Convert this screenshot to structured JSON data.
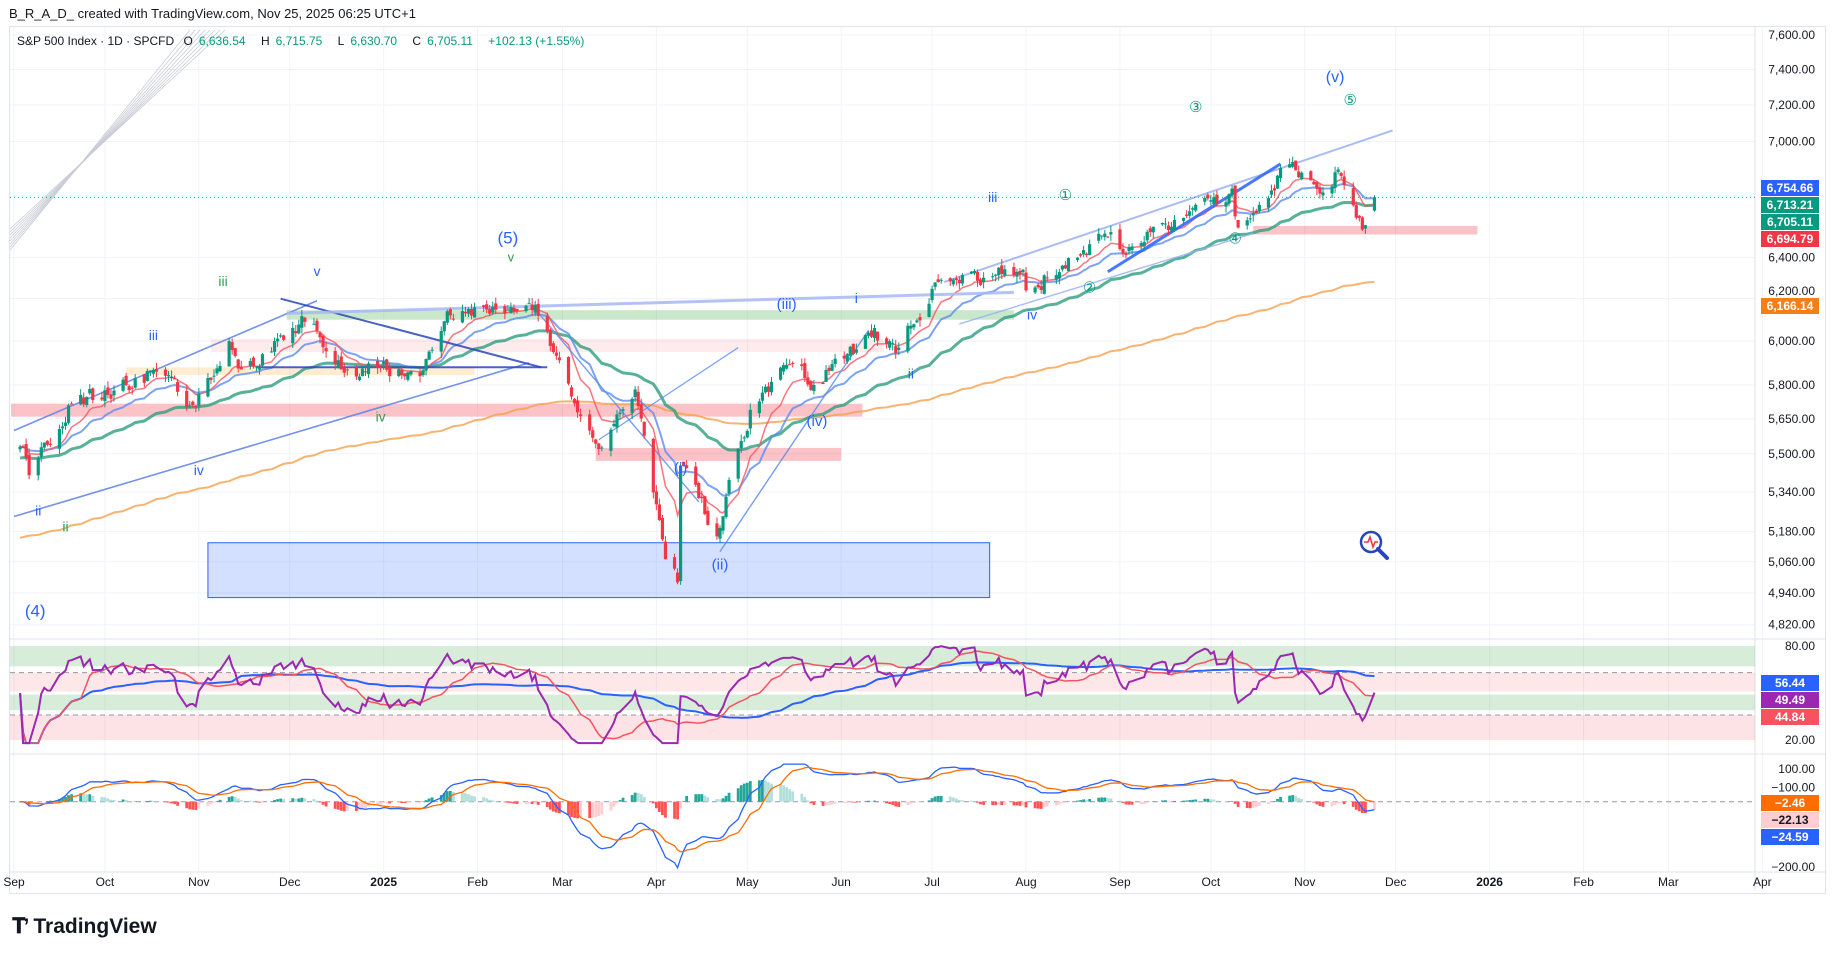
{
  "header": {
    "credit": "B_R_A_D_ created with TradingView.com, Nov 25, 2025 06:25 UTC+1"
  },
  "legend": {
    "symbol": "S&P 500 Index · 1D · SPCFD",
    "o_label": "O",
    "o": "6,636.54",
    "h_label": "H",
    "h": "6,715.75",
    "l_label": "L",
    "l": "6,630.70",
    "c_label": "C",
    "c": "6,705.11",
    "change": "+102.13 (+1.55%)"
  },
  "price_tags": [
    {
      "value": 6754.66,
      "text": "6,754.66",
      "color": "#2962ff"
    },
    {
      "value": 6713.21,
      "text": "6,713.21",
      "color": "#089981"
    },
    {
      "value": 6705.11,
      "text": "6,705.11",
      "color": "#089981"
    },
    {
      "value": 6694.79,
      "text": "6,694.79",
      "color": "#f23645"
    },
    {
      "value": 6166.14,
      "text": "6,166.14",
      "color": "#f57f17"
    }
  ],
  "rsi_tags": [
    {
      "value": 56.44,
      "text": "56.44",
      "color": "#2962ff"
    },
    {
      "value": 49.49,
      "text": "49.49",
      "color": "#9c27b0"
    },
    {
      "value": 44.84,
      "text": "44.84",
      "color": "#f7525f"
    }
  ],
  "macd_tags": [
    {
      "value": -2.46,
      "text": "−2.46",
      "color": "#ff6d00",
      "fg": "#fff"
    },
    {
      "value": -22.13,
      "text": "−22.13",
      "color": "#ffcdd2",
      "fg": "#131722"
    },
    {
      "value": -24.59,
      "text": "−24.59",
      "color": "#2962ff",
      "fg": "#fff"
    }
  ],
  "logo": {
    "text": "TradingView"
  },
  "icons": {
    "logo": "tradingview-logo-icon",
    "magnifier": "magnifier-pulse-icon"
  },
  "colors": {
    "up": "#089981",
    "down": "#f23645",
    "ema_fast": "#f7525f",
    "ema_mid": "#5b8def",
    "ema_slow": "#2e9e7f",
    "ema_200": "#f7a04b",
    "rsi": "#9c27b0",
    "macd": "#2962ff",
    "signal": "#ff6d00"
  },
  "chart_data": {
    "type": "candlestick",
    "title": "S&P 500 Index · 1D · SPCFD",
    "start_date": "2024-09-01",
    "price_axis": {
      "ticks": [
        "7,600.00",
        "7,400.00",
        "7,200.00",
        "7,000.00",
        "6,400.00",
        "6,200.00",
        "6,000.00",
        "5,800.00",
        "5,650.00",
        "5,500.00",
        "5,340.00",
        "5,180.00",
        "5,060.00",
        "4,940.00",
        "4,820.00"
      ],
      "tick_values": [
        7600,
        7400,
        7200,
        7000,
        6400,
        6200,
        6000,
        5800,
        5650,
        5500,
        5340,
        5180,
        5060,
        4940,
        4820
      ],
      "scale": "log",
      "range": [
        4820,
        7600
      ]
    },
    "time_axis": {
      "labels": [
        "Sep",
        "Oct",
        "Nov",
        "Dec",
        "2025",
        "Feb",
        "Mar",
        "Apr",
        "May",
        "Jun",
        "Jul",
        "Aug",
        "Sep",
        "Oct",
        "Nov",
        "Dec",
        "2026",
        "Feb",
        "Mar",
        "Apr"
      ],
      "dates": [
        "2024-09-01",
        "2024-10-01",
        "2024-11-01",
        "2024-12-01",
        "2025-01-01",
        "2025-02-01",
        "2025-03-01",
        "2025-04-01",
        "2025-05-01",
        "2025-06-01",
        "2025-07-01",
        "2025-08-01",
        "2025-09-01",
        "2025-10-01",
        "2025-11-01",
        "2025-12-01",
        "2026-01-01",
        "2026-02-01",
        "2026-03-01",
        "2026-04-01"
      ]
    },
    "close_keyframes": [
      [
        "2024-09-03",
        5530
      ],
      [
        "2024-09-06",
        5410
      ],
      [
        "2024-09-19",
        5710
      ],
      [
        "2024-10-18",
        5860
      ],
      [
        "2024-10-31",
        5700
      ],
      [
        "2024-11-11",
        6000
      ],
      [
        "2024-11-15",
        5870
      ],
      [
        "2024-12-06",
        6090
      ],
      [
        "2024-12-18",
        5870
      ],
      [
        "2024-12-31",
        5880
      ],
      [
        "2025-01-13",
        5840
      ],
      [
        "2025-01-23",
        6120
      ],
      [
        "2025-02-19",
        6145
      ],
      [
        "2025-03-13",
        5520
      ],
      [
        "2025-03-25",
        5780
      ],
      [
        "2025-04-04",
        5070
      ],
      [
        "2025-04-08",
        4980
      ],
      [
        "2025-04-09",
        5450
      ],
      [
        "2025-04-21",
        5160
      ],
      [
        "2025-05-02",
        5690
      ],
      [
        "2025-05-13",
        5890
      ],
      [
        "2025-05-23",
        5800
      ],
      [
        "2025-06-11",
        6020
      ],
      [
        "2025-06-20",
        5970
      ],
      [
        "2025-07-03",
        6280
      ],
      [
        "2025-07-31",
        6340
      ],
      [
        "2025-08-01",
        6240
      ],
      [
        "2025-08-28",
        6500
      ],
      [
        "2025-09-02",
        6420
      ],
      [
        "2025-10-08",
        6750
      ],
      [
        "2025-10-10",
        6550
      ],
      [
        "2025-10-28",
        6890
      ],
      [
        "2025-11-07",
        6730
      ],
      [
        "2025-11-12",
        6850
      ],
      [
        "2025-11-20",
        6540
      ],
      [
        "2025-11-24",
        6705.11
      ]
    ],
    "last_bar": {
      "date": "2025-11-24",
      "open": 6636.54,
      "high": 6715.75,
      "low": 6630.7,
      "close": 6705.11
    },
    "moving_averages": [
      {
        "name": "EMA fast",
        "period": 10,
        "last": 6694.79
      },
      {
        "name": "EMA mid",
        "period": 20,
        "last": 6754.66
      },
      {
        "name": "EMA 50",
        "period": 50,
        "seed": 5480,
        "last": 6713.21
      },
      {
        "name": "EMA 200",
        "period": 200,
        "seed": 5150,
        "last": 6166.14
      }
    ],
    "zones": [
      {
        "from": "2024-11-04",
        "to": "2025-07-20",
        "top": 5135,
        "bottom": 4922,
        "fill": "rgba(41,98,255,0.2)",
        "stroke": "#2962ff"
      },
      {
        "from": "2024-08-31",
        "to": "2025-06-08",
        "top": 5717,
        "bottom": 5660,
        "fill": "rgba(242,54,69,0.3)"
      },
      {
        "from": "2025-03-12",
        "to": "2025-06-01",
        "top": 5525,
        "bottom": 5470,
        "fill": "rgba(242,54,69,0.3)"
      },
      {
        "from": "2025-10-15",
        "to": "2025-12-28",
        "top": 6558,
        "bottom": 6515,
        "fill": "rgba(242,54,69,0.3)"
      },
      {
        "from": "2024-11-30",
        "to": "2025-07-28",
        "top": 6145,
        "bottom": 6100,
        "fill": "rgba(76,175,80,0.3)"
      },
      {
        "from": "2024-11-05",
        "to": "2025-06-15",
        "top": 6010,
        "bottom": 5950,
        "fill": "rgba(242,54,69,0.1)"
      },
      {
        "from": "2024-10-08",
        "to": "2025-01-31",
        "top": 5880,
        "bottom": 5845,
        "fill": "rgba(255,152,0,0.18)"
      }
    ],
    "trendlines": [
      {
        "from": [
          "2024-09-01",
          5600
        ],
        "to": [
          "2024-12-10",
          6190
        ],
        "color": "#5b7fe8",
        "w": 1.6
      },
      {
        "from": [
          "2024-09-01",
          5240
        ],
        "to": [
          "2025-02-18",
          5900
        ],
        "color": "#5b7fe8",
        "w": 1.6
      },
      {
        "from": [
          "2024-11-28",
          6200
        ],
        "to": [
          "2025-02-22",
          5880
        ],
        "color": "#2946b8",
        "w": 2
      },
      {
        "from": [
          "2024-11-20",
          5880
        ],
        "to": [
          "2025-02-24",
          5880
        ],
        "color": "#2946b8",
        "w": 2
      },
      {
        "from": [
          "2024-11-30",
          6130
        ],
        "to": [
          "2025-07-28",
          6230
        ],
        "color": "#a7b8f5",
        "w": 3
      },
      {
        "from": [
          "2025-02-20",
          6150
        ],
        "to": [
          "2025-04-15",
          5300
        ],
        "color": "#5b8def",
        "w": 1.4
      },
      {
        "from": [
          "2025-04-22",
          5100
        ],
        "to": [
          "2025-06-10",
          6050
        ],
        "color": "#5b8def",
        "w": 1.4
      },
      {
        "from": [
          "2025-03-13",
          5560
        ],
        "to": [
          "2025-04-28",
          5970
        ],
        "color": "#5b8def",
        "w": 1.2
      },
      {
        "from": [
          "2025-07-05",
          6280
        ],
        "to": [
          "2025-11-30",
          7060
        ],
        "color": "#9bb0f5",
        "w": 2
      },
      {
        "from": [
          "2025-07-10",
          6080
        ],
        "to": [
          "2025-10-15",
          6520
        ],
        "color": "#9bb0f5",
        "w": 1.4
      },
      {
        "from": [
          "2025-08-28",
          6330
        ],
        "to": [
          "2025-10-24",
          6880
        ],
        "color": "#2962ff",
        "w": 3
      }
    ],
    "wave_labels": [
      {
        "text": "(4)",
        "date": "2024-09-08",
        "price": 4850,
        "color": "#2962ff",
        "size": 17
      },
      {
        "text": "ii",
        "date": "2024-09-09",
        "price": 5245,
        "color": "#2962ff",
        "size": 14
      },
      {
        "text": "ii",
        "date": "2024-09-18",
        "price": 5180,
        "color": "#2e9e4f",
        "size": 14
      },
      {
        "text": "iii",
        "date": "2024-10-17",
        "price": 6005,
        "color": "#2962ff",
        "size": 14
      },
      {
        "text": "iv",
        "date": "2024-11-01",
        "price": 5410,
        "color": "#2962ff",
        "size": 14
      },
      {
        "text": "iii",
        "date": "2024-11-09",
        "price": 6260,
        "color": "#2e9e4f",
        "size": 14
      },
      {
        "text": "v",
        "date": "2024-12-10",
        "price": 6310,
        "color": "#2962ff",
        "size": 14
      },
      {
        "text": "iv",
        "date": "2024-12-31",
        "price": 5640,
        "color": "#2e9e4f",
        "size": 14
      },
      {
        "text": "(5)",
        "date": "2025-02-11",
        "price": 6470,
        "color": "#2962ff",
        "size": 17
      },
      {
        "text": "v",
        "date": "2025-02-12",
        "price": 6380,
        "color": "#2e9e4f",
        "size": 13
      },
      {
        "text": "(i)",
        "date": "2025-04-09",
        "price": 5420,
        "color": "#2962ff",
        "size": 15
      },
      {
        "text": "(ii)",
        "date": "2025-04-22",
        "price": 5030,
        "color": "#2962ff",
        "size": 15
      },
      {
        "text": "(iii)",
        "date": "2025-05-14",
        "price": 6150,
        "color": "#2962ff",
        "size": 15
      },
      {
        "text": "(iv)",
        "date": "2025-05-24",
        "price": 5620,
        "color": "#2962ff",
        "size": 15
      },
      {
        "text": "i",
        "date": "2025-06-06",
        "price": 6180,
        "color": "#2962ff",
        "size": 14
      },
      {
        "text": "ii",
        "date": "2025-06-24",
        "price": 5830,
        "color": "#2962ff",
        "size": 14
      },
      {
        "text": "iii",
        "date": "2025-07-21",
        "price": 6680,
        "color": "#2962ff",
        "size": 14
      },
      {
        "text": "iv",
        "date": "2025-08-03",
        "price": 6100,
        "color": "#2962ff",
        "size": 14
      },
      {
        "text": "①",
        "date": "2025-08-14",
        "price": 6690,
        "color": "#089981",
        "size": 15
      },
      {
        "text": "②",
        "date": "2025-08-22",
        "price": 6230,
        "color": "#089981",
        "size": 15
      },
      {
        "text": "③",
        "date": "2025-09-26",
        "price": 7160,
        "color": "#089981",
        "size": 15
      },
      {
        "text": "④",
        "date": "2025-10-09",
        "price": 6470,
        "color": "#089981",
        "size": 15
      },
      {
        "text": "(v)",
        "date": "2025-11-11",
        "price": 7330,
        "color": "#2962ff",
        "size": 16
      },
      {
        "text": "⑤",
        "date": "2025-11-16",
        "price": 7200,
        "color": "#089981",
        "size": 15
      }
    ],
    "rsi_panel": {
      "ticks": [
        "80.00",
        "20.00"
      ],
      "tick_values": [
        80,
        20
      ],
      "period": 14,
      "bands": [
        [
          80,
          67,
          "rgba(76,175,80,0.22)"
        ],
        [
          63,
          51,
          "rgba(242,54,69,0.12)"
        ],
        [
          49,
          39,
          "rgba(76,175,80,0.22)"
        ],
        [
          36,
          20,
          "rgba(242,54,69,0.14)"
        ]
      ]
    },
    "macd_panel": {
      "ticks": [
        "100.00",
        "−100.00",
        "−200.00"
      ],
      "tick_values": [
        100,
        -100,
        -200
      ],
      "fast": 12,
      "slow": 26,
      "signal": 9
    }
  }
}
